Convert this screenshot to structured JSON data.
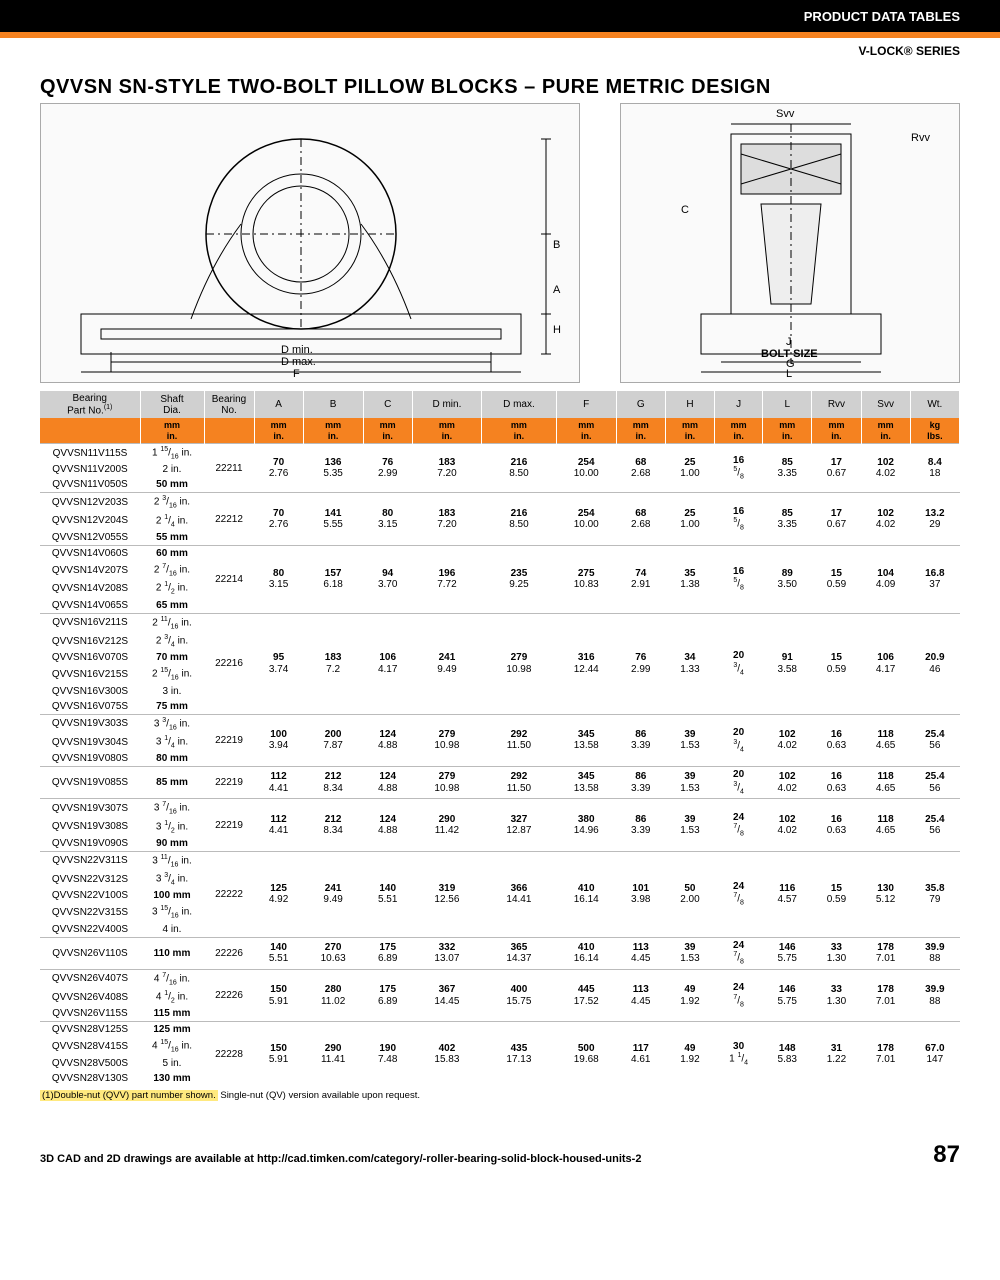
{
  "header": {
    "product_data": "PRODUCT DATA TABLES",
    "series": "V-LOCK® SERIES"
  },
  "title": "QVVSN SN-STYLE TWO-BOLT PILLOW BLOCKS – PURE METRIC DESIGN",
  "diagram_labels": {
    "Dmin": "D min.",
    "Dmax": "D max.",
    "F": "F",
    "A": "A",
    "B": "B",
    "H": "H",
    "Svv": "Svv",
    "Rvv": "Rvv",
    "C": "C",
    "J": "J",
    "bolt": "BOLT SIZE",
    "G": "G",
    "L": "L"
  },
  "columns": [
    "Bearing Part No.(1)",
    "Shaft Dia.",
    "Bearing No.",
    "A",
    "B",
    "C",
    "D min.",
    "D max.",
    "F",
    "G",
    "H",
    "J",
    "L",
    "Rvv",
    "Svv",
    "Wt."
  ],
  "unit_row": [
    "",
    "mm / in.",
    "",
    "mm / in.",
    "mm / in.",
    "mm / in.",
    "mm / in.",
    "mm / in.",
    "mm / in.",
    "mm / in.",
    "mm / in.",
    "mm / in.",
    "mm / in.",
    "mm / in.",
    "mm / in.",
    "kg / lbs."
  ],
  "groups": [
    {
      "parts": [
        [
          "QVVSN11V115S",
          "1 15/16 in."
        ],
        [
          "QVVSN11V200S",
          "2 in."
        ],
        [
          "QVVSN11V050S",
          "50 mm",
          "bold"
        ]
      ],
      "bearing": "22211",
      "vals": [
        [
          "70",
          "2.76"
        ],
        [
          "136",
          "5.35"
        ],
        [
          "76",
          "2.99"
        ],
        [
          "183",
          "7.20"
        ],
        [
          "216",
          "8.50"
        ],
        [
          "254",
          "10.00"
        ],
        [
          "68",
          "2.68"
        ],
        [
          "25",
          "1.00"
        ],
        [
          "16",
          "5/8"
        ],
        [
          "85",
          "3.35"
        ],
        [
          "17",
          "0.67"
        ],
        [
          "102",
          "4.02"
        ],
        [
          "8.4",
          "18"
        ]
      ]
    },
    {
      "parts": [
        [
          "QVVSN12V203S",
          "2 3/16 in."
        ],
        [
          "QVVSN12V204S",
          "2 1/4 in."
        ],
        [
          "QVVSN12V055S",
          "55 mm",
          "bold"
        ]
      ],
      "bearing": "22212",
      "vals": [
        [
          "70",
          "2.76"
        ],
        [
          "141",
          "5.55"
        ],
        [
          "80",
          "3.15"
        ],
        [
          "183",
          "7.20"
        ],
        [
          "216",
          "8.50"
        ],
        [
          "254",
          "10.00"
        ],
        [
          "68",
          "2.68"
        ],
        [
          "25",
          "1.00"
        ],
        [
          "16",
          "5/8"
        ],
        [
          "85",
          "3.35"
        ],
        [
          "17",
          "0.67"
        ],
        [
          "102",
          "4.02"
        ],
        [
          "13.2",
          "29"
        ]
      ]
    },
    {
      "parts": [
        [
          "QVVSN14V060S",
          "60 mm",
          "bold"
        ],
        [
          "QVVSN14V207S",
          "2 7/16 in."
        ],
        [
          "QVVSN14V208S",
          "2 1/2 in."
        ],
        [
          "QVVSN14V065S",
          "65 mm",
          "bold"
        ]
      ],
      "bearing": "22214",
      "vals": [
        [
          "80",
          "3.15"
        ],
        [
          "157",
          "6.18"
        ],
        [
          "94",
          "3.70"
        ],
        [
          "196",
          "7.72"
        ],
        [
          "235",
          "9.25"
        ],
        [
          "275",
          "10.83"
        ],
        [
          "74",
          "2.91"
        ],
        [
          "35",
          "1.38"
        ],
        [
          "16",
          "5/8"
        ],
        [
          "89",
          "3.50"
        ],
        [
          "15",
          "0.59"
        ],
        [
          "104",
          "4.09"
        ],
        [
          "16.8",
          "37"
        ]
      ]
    },
    {
      "parts": [
        [
          "QVVSN16V211S",
          "2 11/16 in."
        ],
        [
          "QVVSN16V212S",
          "2 3/4 in."
        ],
        [
          "QVVSN16V070S",
          "70 mm",
          "bold"
        ],
        [
          "QVVSN16V215S",
          "2 15/16 in."
        ],
        [
          "QVVSN16V300S",
          "3 in."
        ],
        [
          "QVVSN16V075S",
          "75 mm",
          "bold"
        ]
      ],
      "bearing": "22216",
      "vals": [
        [
          "95",
          "3.74"
        ],
        [
          "183",
          "7.2"
        ],
        [
          "106",
          "4.17"
        ],
        [
          "241",
          "9.49"
        ],
        [
          "279",
          "10.98"
        ],
        [
          "316",
          "12.44"
        ],
        [
          "76",
          "2.99"
        ],
        [
          "34",
          "1.33"
        ],
        [
          "20",
          "3/4"
        ],
        [
          "91",
          "3.58"
        ],
        [
          "15",
          "0.59"
        ],
        [
          "106",
          "4.17"
        ],
        [
          "20.9",
          "46"
        ]
      ]
    },
    {
      "parts": [
        [
          "QVVSN19V303S",
          "3 3/16 in."
        ],
        [
          "QVVSN19V304S",
          "3 1/4 in."
        ],
        [
          "QVVSN19V080S",
          "80 mm",
          "bold"
        ]
      ],
      "bearing": "22219",
      "vals": [
        [
          "100",
          "3.94"
        ],
        [
          "200",
          "7.87"
        ],
        [
          "124",
          "4.88"
        ],
        [
          "279",
          "10.98"
        ],
        [
          "292",
          "11.50"
        ],
        [
          "345",
          "13.58"
        ],
        [
          "86",
          "3.39"
        ],
        [
          "39",
          "1.53"
        ],
        [
          "20",
          "3/4"
        ],
        [
          "102",
          "4.02"
        ],
        [
          "16",
          "0.63"
        ],
        [
          "118",
          "4.65"
        ],
        [
          "25.4",
          "56"
        ]
      ]
    },
    {
      "parts": [
        [
          "QVVSN19V085S",
          "85 mm",
          "bold"
        ]
      ],
      "bearing": "22219",
      "vals": [
        [
          "112",
          "4.41"
        ],
        [
          "212",
          "8.34"
        ],
        [
          "124",
          "4.88"
        ],
        [
          "279",
          "10.98"
        ],
        [
          "292",
          "11.50"
        ],
        [
          "345",
          "13.58"
        ],
        [
          "86",
          "3.39"
        ],
        [
          "39",
          "1.53"
        ],
        [
          "20",
          "3/4"
        ],
        [
          "102",
          "4.02"
        ],
        [
          "16",
          "0.63"
        ],
        [
          "118",
          "4.65"
        ],
        [
          "25.4",
          "56"
        ]
      ]
    },
    {
      "parts": [
        [
          "QVVSN19V307S",
          "3 7/16 in."
        ],
        [
          "QVVSN19V308S",
          "3 1/2 in."
        ],
        [
          "QVVSN19V090S",
          "90 mm",
          "bold"
        ]
      ],
      "bearing": "22219",
      "vals": [
        [
          "112",
          "4.41"
        ],
        [
          "212",
          "8.34"
        ],
        [
          "124",
          "4.88"
        ],
        [
          "290",
          "11.42"
        ],
        [
          "327",
          "12.87"
        ],
        [
          "380",
          "14.96"
        ],
        [
          "86",
          "3.39"
        ],
        [
          "39",
          "1.53"
        ],
        [
          "24",
          "7/8"
        ],
        [
          "102",
          "4.02"
        ],
        [
          "16",
          "0.63"
        ],
        [
          "118",
          "4.65"
        ],
        [
          "25.4",
          "56"
        ]
      ]
    },
    {
      "parts": [
        [
          "QVVSN22V311S",
          "3 11/16 in."
        ],
        [
          "QVVSN22V312S",
          "3 3/4 in."
        ],
        [
          "QVVSN22V100S",
          "100 mm",
          "bold"
        ],
        [
          "QVVSN22V315S",
          "3 15/16 in."
        ],
        [
          "QVVSN22V400S",
          "4 in."
        ]
      ],
      "bearing": "22222",
      "vals": [
        [
          "125",
          "4.92"
        ],
        [
          "241",
          "9.49"
        ],
        [
          "140",
          "5.51"
        ],
        [
          "319",
          "12.56"
        ],
        [
          "366",
          "14.41"
        ],
        [
          "410",
          "16.14"
        ],
        [
          "101",
          "3.98"
        ],
        [
          "50",
          "2.00"
        ],
        [
          "24",
          "7/8"
        ],
        [
          "116",
          "4.57"
        ],
        [
          "15",
          "0.59"
        ],
        [
          "130",
          "5.12"
        ],
        [
          "35.8",
          "79"
        ]
      ]
    },
    {
      "parts": [
        [
          "QVVSN26V110S",
          "110 mm",
          "bold"
        ]
      ],
      "bearing": "22226",
      "vals": [
        [
          "140",
          "5.51"
        ],
        [
          "270",
          "10.63"
        ],
        [
          "175",
          "6.89"
        ],
        [
          "332",
          "13.07"
        ],
        [
          "365",
          "14.37"
        ],
        [
          "410",
          "16.14"
        ],
        [
          "113",
          "4.45"
        ],
        [
          "39",
          "1.53"
        ],
        [
          "24",
          "7/8"
        ],
        [
          "146",
          "5.75"
        ],
        [
          "33",
          "1.30"
        ],
        [
          "178",
          "7.01"
        ],
        [
          "39.9",
          "88"
        ]
      ]
    },
    {
      "parts": [
        [
          "QVVSN26V407S",
          "4 7/16 in."
        ],
        [
          "QVVSN26V408S",
          "4 1/2 in."
        ],
        [
          "QVVSN26V115S",
          "115 mm",
          "bold"
        ]
      ],
      "bearing": "22226",
      "vals": [
        [
          "150",
          "5.91"
        ],
        [
          "280",
          "11.02"
        ],
        [
          "175",
          "6.89"
        ],
        [
          "367",
          "14.45"
        ],
        [
          "400",
          "15.75"
        ],
        [
          "445",
          "17.52"
        ],
        [
          "113",
          "4.45"
        ],
        [
          "49",
          "1.92"
        ],
        [
          "24",
          "7/8"
        ],
        [
          "146",
          "5.75"
        ],
        [
          "33",
          "1.30"
        ],
        [
          "178",
          "7.01"
        ],
        [
          "39.9",
          "88"
        ]
      ]
    },
    {
      "parts": [
        [
          "QVVSN28V125S",
          "125 mm",
          "bold"
        ],
        [
          "QVVSN28V415S",
          "4 15/16 in."
        ],
        [
          "QVVSN28V500S",
          "5 in."
        ],
        [
          "QVVSN28V130S",
          "130 mm",
          "bold"
        ]
      ],
      "bearing": "22228",
      "vals": [
        [
          "150",
          "5.91"
        ],
        [
          "290",
          "11.41"
        ],
        [
          "190",
          "7.48"
        ],
        [
          "402",
          "15.83"
        ],
        [
          "435",
          "17.13"
        ],
        [
          "500",
          "19.68"
        ],
        [
          "117",
          "4.61"
        ],
        [
          "49",
          "1.92"
        ],
        [
          "30",
          "1 1/4"
        ],
        [
          "148",
          "5.83"
        ],
        [
          "31",
          "1.22"
        ],
        [
          "178",
          "7.01"
        ],
        [
          "67.0",
          "147"
        ]
      ]
    }
  ],
  "footnote": {
    "highlighted": "(1)Double-nut (QVV) part number shown.",
    "rest": " Single-nut (QV) version available upon request."
  },
  "footer": {
    "cad": "3D CAD and 2D drawings are available at http://cad.timken.com/category/-roller-bearing-solid-block-housed-units-2",
    "page": "87"
  }
}
